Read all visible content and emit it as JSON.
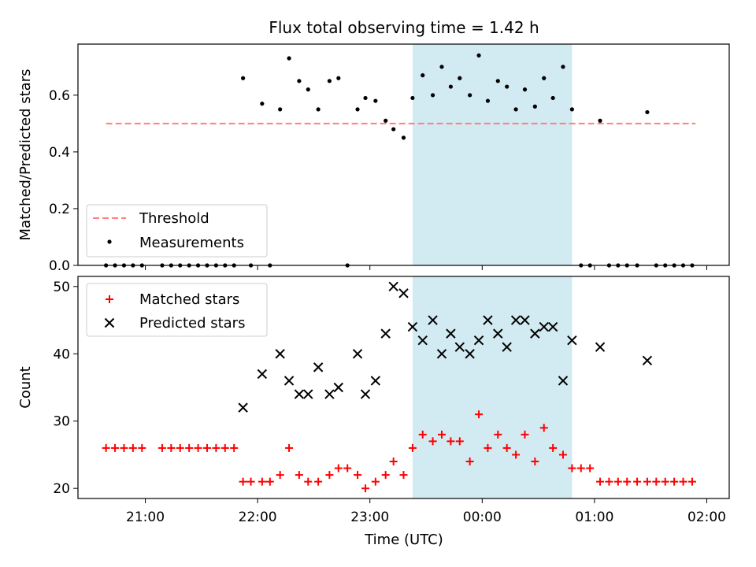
{
  "figure": {
    "title": "Flux total observing time = 1.42 h",
    "xlabel": "Time (UTC)",
    "xtick_labels": [
      "21:00",
      "22:00",
      "23:00",
      "00:00",
      "01:00",
      "02:00"
    ]
  },
  "colors": {
    "threshold": "#ff7f7f",
    "measurements": "#000000",
    "matched": "#ff0000",
    "predicted": "#000000",
    "shade": "#add8e6"
  },
  "chart_data": [
    {
      "type": "scatter",
      "ylabel": "Matched/Predicted stars",
      "ylim": [
        0,
        0.78
      ],
      "yticks": [
        "0.0",
        "0.2",
        "0.4",
        "0.6"
      ],
      "xlim_hours": [
        20.4,
        26.2
      ],
      "shaded_span_hours": [
        23.38,
        24.8
      ],
      "threshold": {
        "y": 0.5,
        "x_start_hours": 20.65,
        "x_end_hours": 25.9
      },
      "legend_position": "lower-left",
      "legend": [
        "Threshold",
        "Measurements"
      ],
      "series": [
        {
          "name": "Measurements",
          "points": [
            [
              20.65,
              0.0
            ],
            [
              20.73,
              0.0
            ],
            [
              20.81,
              0.0
            ],
            [
              20.89,
              0.0
            ],
            [
              20.97,
              0.0
            ],
            [
              21.15,
              0.0
            ],
            [
              21.23,
              0.0
            ],
            [
              21.31,
              0.0
            ],
            [
              21.39,
              0.0
            ],
            [
              21.47,
              0.0
            ],
            [
              21.55,
              0.0
            ],
            [
              21.63,
              0.0
            ],
            [
              21.71,
              0.0
            ],
            [
              21.79,
              0.0
            ],
            [
              21.87,
              0.66
            ],
            [
              21.94,
              0.0
            ],
            [
              22.04,
              0.57
            ],
            [
              22.11,
              0.0
            ],
            [
              22.2,
              0.55
            ],
            [
              22.28,
              0.73
            ],
            [
              22.37,
              0.65
            ],
            [
              22.45,
              0.62
            ],
            [
              22.54,
              0.55
            ],
            [
              22.64,
              0.65
            ],
            [
              22.72,
              0.66
            ],
            [
              22.8,
              0.0
            ],
            [
              22.89,
              0.55
            ],
            [
              22.96,
              0.59
            ],
            [
              23.05,
              0.58
            ],
            [
              23.14,
              0.51
            ],
            [
              23.21,
              0.48
            ],
            [
              23.3,
              0.45
            ],
            [
              23.38,
              0.59
            ],
            [
              23.47,
              0.67
            ],
            [
              23.56,
              0.6
            ],
            [
              23.64,
              0.7
            ],
            [
              23.72,
              0.63
            ],
            [
              23.8,
              0.66
            ],
            [
              23.89,
              0.6
            ],
            [
              23.97,
              0.74
            ],
            [
              24.05,
              0.58
            ],
            [
              24.14,
              0.65
            ],
            [
              24.22,
              0.63
            ],
            [
              24.3,
              0.55
            ],
            [
              24.38,
              0.62
            ],
            [
              24.47,
              0.56
            ],
            [
              24.55,
              0.66
            ],
            [
              24.63,
              0.59
            ],
            [
              24.72,
              0.7
            ],
            [
              24.8,
              0.55
            ],
            [
              24.88,
              0.0
            ],
            [
              24.96,
              0.0
            ],
            [
              25.05,
              0.51
            ],
            [
              25.13,
              0.0
            ],
            [
              25.21,
              0.0
            ],
            [
              25.29,
              0.0
            ],
            [
              25.38,
              0.0
            ],
            [
              25.47,
              0.54
            ],
            [
              25.55,
              0.0
            ],
            [
              25.63,
              0.0
            ],
            [
              25.71,
              0.0
            ],
            [
              25.79,
              0.0
            ],
            [
              25.87,
              0.0
            ]
          ]
        }
      ]
    },
    {
      "type": "scatter",
      "ylabel": "Count",
      "ylim": [
        18.5,
        51.5
      ],
      "yticks": [
        "20",
        "30",
        "40",
        "50"
      ],
      "xlim_hours": [
        20.4,
        26.2
      ],
      "shaded_span_hours": [
        23.38,
        24.8
      ],
      "legend_position": "upper-left",
      "legend": [
        "Matched stars",
        "Predicted stars"
      ],
      "series": [
        {
          "name": "Matched stars",
          "points": [
            [
              20.65,
              26
            ],
            [
              20.73,
              26
            ],
            [
              20.81,
              26
            ],
            [
              20.89,
              26
            ],
            [
              20.97,
              26
            ],
            [
              21.15,
              26
            ],
            [
              21.23,
              26
            ],
            [
              21.31,
              26
            ],
            [
              21.39,
              26
            ],
            [
              21.47,
              26
            ],
            [
              21.55,
              26
            ],
            [
              21.63,
              26
            ],
            [
              21.71,
              26
            ],
            [
              21.79,
              26
            ],
            [
              21.87,
              21
            ],
            [
              21.94,
              21
            ],
            [
              22.04,
              21
            ],
            [
              22.11,
              21
            ],
            [
              22.2,
              22
            ],
            [
              22.28,
              26
            ],
            [
              22.37,
              22
            ],
            [
              22.45,
              21
            ],
            [
              22.54,
              21
            ],
            [
              22.64,
              22
            ],
            [
              22.72,
              23
            ],
            [
              22.8,
              23
            ],
            [
              22.89,
              22
            ],
            [
              22.96,
              20
            ],
            [
              23.05,
              21
            ],
            [
              23.14,
              22
            ],
            [
              23.21,
              24
            ],
            [
              23.3,
              22
            ],
            [
              23.38,
              26
            ],
            [
              23.47,
              28
            ],
            [
              23.56,
              27
            ],
            [
              23.64,
              28
            ],
            [
              23.72,
              27
            ],
            [
              23.8,
              27
            ],
            [
              23.89,
              24
            ],
            [
              23.97,
              31
            ],
            [
              24.05,
              26
            ],
            [
              24.14,
              28
            ],
            [
              24.22,
              26
            ],
            [
              24.3,
              25
            ],
            [
              24.38,
              28
            ],
            [
              24.47,
              24
            ],
            [
              24.55,
              29
            ],
            [
              24.63,
              26
            ],
            [
              24.72,
              25
            ],
            [
              24.8,
              23
            ],
            [
              24.88,
              23
            ],
            [
              24.96,
              23
            ],
            [
              25.05,
              21
            ],
            [
              25.13,
              21
            ],
            [
              25.21,
              21
            ],
            [
              25.29,
              21
            ],
            [
              25.38,
              21
            ],
            [
              25.47,
              21
            ],
            [
              25.55,
              21
            ],
            [
              25.63,
              21
            ],
            [
              25.71,
              21
            ],
            [
              25.79,
              21
            ],
            [
              25.87,
              21
            ]
          ]
        },
        {
          "name": "Predicted stars",
          "points": [
            [
              21.87,
              32
            ],
            [
              22.04,
              37
            ],
            [
              22.2,
              40
            ],
            [
              22.28,
              36
            ],
            [
              22.37,
              34
            ],
            [
              22.45,
              34
            ],
            [
              22.54,
              38
            ],
            [
              22.64,
              34
            ],
            [
              22.72,
              35
            ],
            [
              22.89,
              40
            ],
            [
              22.96,
              34
            ],
            [
              23.05,
              36
            ],
            [
              23.14,
              43
            ],
            [
              23.21,
              50
            ],
            [
              23.3,
              49
            ],
            [
              23.38,
              44
            ],
            [
              23.47,
              42
            ],
            [
              23.56,
              45
            ],
            [
              23.64,
              40
            ],
            [
              23.72,
              43
            ],
            [
              23.8,
              41
            ],
            [
              23.89,
              40
            ],
            [
              23.97,
              42
            ],
            [
              24.05,
              45
            ],
            [
              24.14,
              43
            ],
            [
              24.22,
              41
            ],
            [
              24.3,
              45
            ],
            [
              24.38,
              45
            ],
            [
              24.47,
              43
            ],
            [
              24.55,
              44
            ],
            [
              24.63,
              44
            ],
            [
              24.72,
              36
            ],
            [
              24.8,
              42
            ],
            [
              25.05,
              41
            ],
            [
              25.47,
              39
            ]
          ]
        }
      ]
    }
  ]
}
